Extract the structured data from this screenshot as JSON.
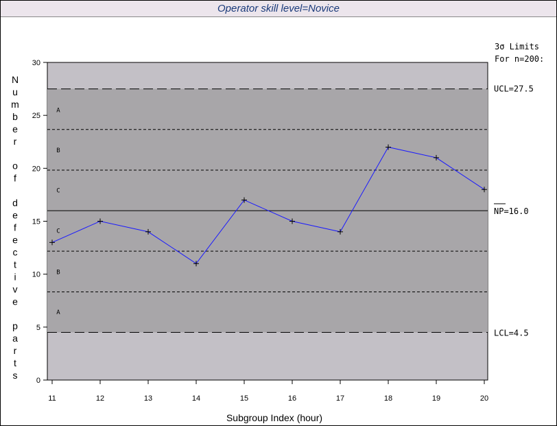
{
  "chart_data": {
    "type": "line",
    "title": "Operator skill level=Novice",
    "xlabel": "Subgroup Index (hour)",
    "ylabel": "Number of defective parts",
    "x": [
      11,
      12,
      13,
      14,
      15,
      16,
      17,
      18,
      19,
      20
    ],
    "series": [
      {
        "values": [
          13,
          15,
          14,
          11,
          17,
          15,
          14,
          22,
          21,
          18
        ]
      }
    ],
    "xlim": [
      11,
      20
    ],
    "ylim": [
      0,
      30
    ],
    "yticks": [
      0,
      5,
      10,
      15,
      20,
      25,
      30
    ],
    "limits_heading": [
      "3σ Limits",
      "For n=200:"
    ],
    "center_line": {
      "value": 16.0,
      "label": "NP=16.0"
    },
    "ucl": {
      "value": 27.5,
      "label": "UCL=27.5"
    },
    "lcl": {
      "value": 4.5,
      "label": "LCL=4.5"
    },
    "zone_lines": [
      8.33,
      12.17,
      19.83,
      23.67
    ],
    "zone_labels": [
      {
        "text": "A",
        "y": 25.5
      },
      {
        "text": "B",
        "y": 21.7
      },
      {
        "text": "C",
        "y": 17.9
      },
      {
        "text": "C",
        "y": 14.1
      },
      {
        "text": "B",
        "y": 10.2
      },
      {
        "text": "A",
        "y": 6.4
      }
    ],
    "colors": {
      "outer_band": "#c3c0c6",
      "inner_band": "#a8a6a9",
      "series": "#1a1aff",
      "title": "#1a3a7a"
    },
    "grid": false,
    "legend": "none"
  }
}
